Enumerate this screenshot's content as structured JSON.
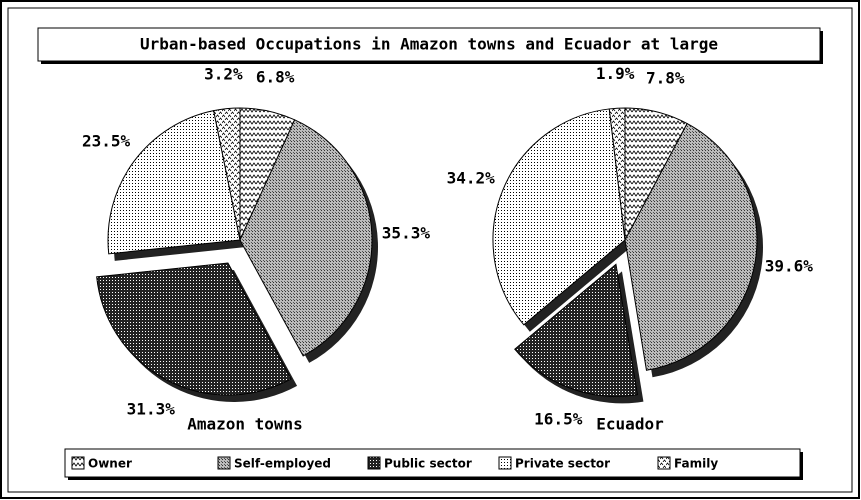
{
  "chart_data": {
    "type": "pie",
    "title": "Urban-based Occupations in Amazon towns and Ecuador at large",
    "categories": [
      "Owner",
      "Self-employed",
      "Public sector",
      "Private sector",
      "Family"
    ],
    "patterns": [
      "zigzag",
      "diagonal",
      "crosshatch",
      "dots",
      "wave"
    ],
    "explode": [
      false,
      false,
      true,
      false,
      false
    ],
    "series": [
      {
        "name": "Amazon towns",
        "values": [
          6.8,
          35.3,
          31.3,
          23.5,
          3.2
        ],
        "value_labels": [
          "6.8%",
          "35.3%",
          "31.3%",
          "23.5%",
          "3.2%"
        ]
      },
      {
        "name": "Ecuador",
        "values": [
          7.8,
          39.6,
          16.5,
          34.2,
          1.9
        ],
        "value_labels": [
          "7.8%",
          "39.6%",
          "16.5%",
          "34.2%",
          "1.9%"
        ]
      }
    ]
  }
}
